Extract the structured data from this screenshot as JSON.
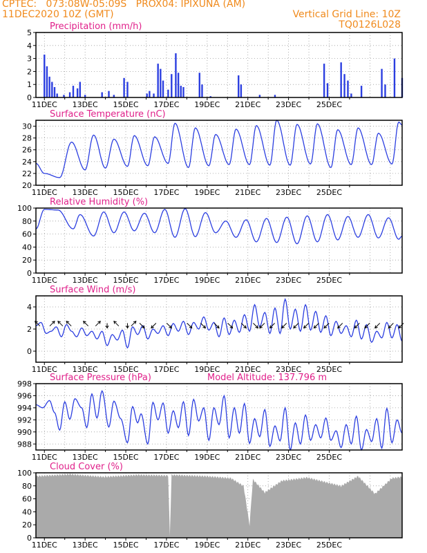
{
  "header": {
    "line1": "CPTEC:   073:08W-05:09S   PROX04: IPIXUNA (AM)",
    "line2": "11DEC2020 10Z (GMT)",
    "grid_note": "Vertical Grid Line: 10Z",
    "code": "TQ0126L028"
  },
  "x_labels": [
    "11DEC",
    "13DEC",
    "15DEC",
    "17DEC",
    "19DEC",
    "21DEC",
    "23DEC",
    "25DEC"
  ],
  "colors": {
    "header": "#f08a1c",
    "title": "#e0208a",
    "series": "#2b3ee0",
    "cloud": "#aaaaaa",
    "grid": "#999999",
    "wind_arrow": "#000000"
  },
  "chart_data": [
    {
      "type": "bar",
      "title": "Precipitation (mm/h)",
      "ylim": [
        0,
        5
      ],
      "yticks": [
        "0",
        "1",
        "2",
        "3",
        "4",
        "5"
      ],
      "x": "hours since 11DEC 00Z",
      "bars": [
        [
          10,
          3.3
        ],
        [
          13,
          2.4
        ],
        [
          16,
          1.6
        ],
        [
          19,
          1.2
        ],
        [
          22,
          0.8
        ],
        [
          25,
          0.3
        ],
        [
          33,
          0.2
        ],
        [
          40,
          0.4
        ],
        [
          44,
          0.9
        ],
        [
          49,
          0.7
        ],
        [
          52,
          1.2
        ],
        [
          58,
          0.2
        ],
        [
          78,
          0.4
        ],
        [
          86,
          0.5
        ],
        [
          92,
          0.2
        ],
        [
          104,
          1.5
        ],
        [
          108,
          1.2
        ],
        [
          131,
          0.3
        ],
        [
          134,
          0.5
        ],
        [
          139,
          0.3
        ],
        [
          144,
          2.6
        ],
        [
          147,
          2.2
        ],
        [
          150,
          1.3
        ],
        [
          156,
          0.6
        ],
        [
          160,
          1.8
        ],
        [
          165,
          3.4
        ],
        [
          168,
          1.9
        ],
        [
          171,
          0.9
        ],
        [
          174,
          0.8
        ],
        [
          193,
          1.9
        ],
        [
          196,
          1.0
        ],
        [
          206,
          0.1
        ],
        [
          239,
          1.7
        ],
        [
          242,
          1.0
        ],
        [
          264,
          0.2
        ],
        [
          282,
          0.2
        ],
        [
          340,
          2.6
        ],
        [
          344,
          1.1
        ],
        [
          360,
          2.7
        ],
        [
          364,
          1.8
        ],
        [
          368,
          1.3
        ],
        [
          372,
          0.3
        ],
        [
          384,
          0.9
        ],
        [
          408,
          2.2
        ],
        [
          412,
          1.0
        ],
        [
          423,
          3.0
        ],
        [
          432,
          1.5
        ]
      ]
    },
    {
      "type": "line",
      "title": "Surface Temperature (nC)",
      "ylim": [
        20,
        31
      ],
      "yticks": [
        "20",
        "22",
        "24",
        "26",
        "28",
        "30"
      ],
      "x": "hours since 11DEC 00Z",
      "minima": [
        [
          10,
          22.0
        ],
        [
          28,
          21.3
        ],
        [
          58,
          22.6
        ],
        [
          82,
          22.9
        ],
        [
          108,
          23.2
        ],
        [
          132,
          23.3
        ],
        [
          156,
          23.7
        ],
        [
          180,
          23.0
        ],
        [
          204,
          23.3
        ],
        [
          228,
          23.5
        ],
        [
          252,
          23.5
        ],
        [
          276,
          23.4
        ],
        [
          300,
          23.4
        ],
        [
          324,
          23.6
        ],
        [
          348,
          23.0
        ],
        [
          372,
          23.5
        ],
        [
          396,
          23.5
        ],
        [
          420,
          23.6
        ]
      ],
      "maxima": [
        [
          0,
          23.7
        ],
        [
          42,
          27.3
        ],
        [
          68,
          28.5
        ],
        [
          92,
          27.8
        ],
        [
          116,
          28.4
        ],
        [
          140,
          28.2
        ],
        [
          164,
          30.5
        ],
        [
          188,
          29.7
        ],
        [
          212,
          28.6
        ],
        [
          236,
          29.5
        ],
        [
          260,
          30.1
        ],
        [
          284,
          31.0
        ],
        [
          308,
          30.3
        ],
        [
          332,
          30.4
        ],
        [
          356,
          29.4
        ],
        [
          380,
          29.7
        ],
        [
          404,
          28.8
        ],
        [
          428,
          30.7
        ],
        [
          432,
          30.2
        ]
      ]
    },
    {
      "type": "line",
      "title": "Relative Humidity (%)",
      "ylim": [
        0,
        100
      ],
      "yticks": [
        "0",
        "20",
        "40",
        "60",
        "80",
        "100"
      ],
      "x": "hours since 11DEC 00Z",
      "minima": [
        [
          0,
          68
        ],
        [
          44,
          68
        ],
        [
          68,
          57
        ],
        [
          92,
          62
        ],
        [
          116,
          65
        ],
        [
          140,
          62
        ],
        [
          164,
          55
        ],
        [
          188,
          56
        ],
        [
          212,
          62
        ],
        [
          236,
          55
        ],
        [
          260,
          48
        ],
        [
          284,
          47
        ],
        [
          308,
          45
        ],
        [
          332,
          48
        ],
        [
          356,
          51
        ],
        [
          380,
          55
        ],
        [
          404,
          54
        ],
        [
          428,
          52
        ],
        [
          432,
          57
        ]
      ],
      "maxima": [
        [
          10,
          98
        ],
        [
          26,
          97
        ],
        [
          52,
          90
        ],
        [
          80,
          94
        ],
        [
          104,
          94
        ],
        [
          128,
          92
        ],
        [
          152,
          98
        ],
        [
          176,
          99
        ],
        [
          200,
          93
        ],
        [
          224,
          80
        ],
        [
          248,
          82
        ],
        [
          272,
          84
        ],
        [
          296,
          86
        ],
        [
          320,
          88
        ],
        [
          344,
          90
        ],
        [
          368,
          87
        ],
        [
          392,
          90
        ],
        [
          416,
          85
        ]
      ]
    },
    {
      "type": "line",
      "title": "Surface Wind (m/s)",
      "ylim": [
        -1,
        5
      ],
      "yticks": [
        "0",
        "2",
        "4"
      ],
      "x": "hours since 11DEC 00Z",
      "keys": [
        [
          0,
          2.3
        ],
        [
          6,
          2.6
        ],
        [
          12,
          1.6
        ],
        [
          18,
          1.8
        ],
        [
          24,
          2.2
        ],
        [
          30,
          1.3
        ],
        [
          36,
          2.4
        ],
        [
          42,
          1.8
        ],
        [
          48,
          1.3
        ],
        [
          54,
          2.1
        ],
        [
          60,
          1.4
        ],
        [
          66,
          1.8
        ],
        [
          72,
          1.1
        ],
        [
          78,
          1.8
        ],
        [
          84,
          0.5
        ],
        [
          90,
          1.5
        ],
        [
          96,
          1.0
        ],
        [
          102,
          1.9
        ],
        [
          108,
          0.3
        ],
        [
          114,
          2.2
        ],
        [
          120,
          1.5
        ],
        [
          126,
          2.3
        ],
        [
          132,
          1.1
        ],
        [
          138,
          2.0
        ],
        [
          144,
          1.6
        ],
        [
          150,
          2.3
        ],
        [
          156,
          1.4
        ],
        [
          162,
          2.5
        ],
        [
          168,
          1.8
        ],
        [
          174,
          2.7
        ],
        [
          180,
          1.5
        ],
        [
          186,
          2.6
        ],
        [
          192,
          2.0
        ],
        [
          198,
          3.1
        ],
        [
          204,
          1.9
        ],
        [
          210,
          2.6
        ],
        [
          216,
          1.3
        ],
        [
          222,
          3.0
        ],
        [
          228,
          1.5
        ],
        [
          234,
          2.8
        ],
        [
          240,
          1.7
        ],
        [
          246,
          3.3
        ],
        [
          252,
          1.8
        ],
        [
          258,
          4.2
        ],
        [
          264,
          2.2
        ],
        [
          270,
          3.5
        ],
        [
          276,
          1.6
        ],
        [
          282,
          3.9
        ],
        [
          288,
          1.6
        ],
        [
          294,
          4.7
        ],
        [
          300,
          2.0
        ],
        [
          306,
          3.8
        ],
        [
          312,
          1.8
        ],
        [
          318,
          4.2
        ],
        [
          324,
          1.9
        ],
        [
          330,
          3.6
        ],
        [
          336,
          1.7
        ],
        [
          342,
          3.2
        ],
        [
          348,
          1.4
        ],
        [
          354,
          2.7
        ],
        [
          360,
          1.6
        ],
        [
          366,
          2.3
        ],
        [
          372,
          1.3
        ],
        [
          378,
          2.8
        ],
        [
          384,
          1.1
        ],
        [
          390,
          2.4
        ],
        [
          396,
          0.8
        ],
        [
          402,
          1.8
        ],
        [
          408,
          1.2
        ],
        [
          414,
          2.6
        ],
        [
          420,
          1.2
        ],
        [
          426,
          2.4
        ],
        [
          432,
          0.9
        ]
      ],
      "arrows": [
        [
          3,
          2.4,
          -1,
          -1
        ],
        [
          18,
          2.4,
          1,
          -1
        ],
        [
          30,
          2.4,
          -1,
          -1
        ],
        [
          40,
          2.4,
          -1,
          -1
        ],
        [
          60,
          2.4,
          -1,
          -1
        ],
        [
          72,
          2.4,
          1,
          -1
        ],
        [
          84,
          2.4,
          0,
          1
        ],
        [
          96,
          2.4,
          -1,
          -1
        ],
        [
          108,
          2.4,
          0,
          1
        ],
        [
          114,
          2.4,
          1,
          -1
        ],
        [
          124,
          2.4,
          1,
          1
        ],
        [
          140,
          2.4,
          -1,
          1
        ],
        [
          156,
          2.4,
          1,
          1
        ],
        [
          180,
          2.4,
          1,
          1
        ],
        [
          196,
          2.4,
          1,
          1
        ],
        [
          212,
          2.4,
          1,
          1
        ],
        [
          228,
          2.4,
          1,
          1
        ],
        [
          244,
          2.4,
          1,
          1
        ],
        [
          258,
          2.4,
          1,
          1
        ],
        [
          268,
          2.4,
          -1,
          1
        ],
        [
          280,
          2.4,
          -1,
          1
        ],
        [
          294,
          2.4,
          -1,
          1
        ],
        [
          308,
          2.4,
          -1,
          1
        ],
        [
          320,
          2.4,
          -1,
          1
        ],
        [
          332,
          2.4,
          -1,
          1
        ],
        [
          344,
          2.4,
          -1,
          1
        ],
        [
          360,
          2.4,
          -1,
          1
        ],
        [
          380,
          2.4,
          -1,
          1
        ],
        [
          392,
          2.4,
          -1,
          1
        ],
        [
          404,
          2.4,
          -1,
          1
        ],
        [
          420,
          2.4,
          -1,
          1
        ],
        [
          432,
          2.4,
          -1,
          1
        ]
      ]
    },
    {
      "type": "line",
      "title": "Surface Pressure (hPa)",
      "subtitle": "Model Altitude: 137.796 m",
      "ylim": [
        987,
        998
      ],
      "yticks": [
        "988",
        "990",
        "992",
        "994",
        "996",
        "998"
      ],
      "x": "hours since 11DEC 00Z",
      "keys": [
        [
          0,
          994.5
        ],
        [
          8,
          994.0
        ],
        [
          16,
          995.2
        ],
        [
          22,
          993.2
        ],
        [
          28,
          990.3
        ],
        [
          34,
          995.0
        ],
        [
          40,
          992.1
        ],
        [
          46,
          995.5
        ],
        [
          54,
          994.0
        ],
        [
          60,
          990.7
        ],
        [
          66,
          996.3
        ],
        [
          72,
          992.3
        ],
        [
          78,
          996.8
        ],
        [
          86,
          990.8
        ],
        [
          92,
          995.1
        ],
        [
          100,
          992.2
        ],
        [
          108,
          988.2
        ],
        [
          114,
          994.2
        ],
        [
          120,
          991.5
        ],
        [
          124,
          993.0
        ],
        [
          132,
          988.0
        ],
        [
          138,
          994.9
        ],
        [
          144,
          992.0
        ],
        [
          150,
          994.8
        ],
        [
          156,
          989.8
        ],
        [
          162,
          993.5
        ],
        [
          168,
          990.7
        ],
        [
          174,
          995.0
        ],
        [
          180,
          989.4
        ],
        [
          186,
          995.4
        ],
        [
          192,
          991.8
        ],
        [
          198,
          994.0
        ],
        [
          204,
          988.6
        ],
        [
          210,
          994.0
        ],
        [
          216,
          991.2
        ],
        [
          222,
          996.0
        ],
        [
          228,
          989.0
        ],
        [
          234,
          994.0
        ],
        [
          240,
          989.8
        ],
        [
          246,
          994.7
        ],
        [
          252,
          988.1
        ],
        [
          258,
          992.2
        ],
        [
          264,
          989.2
        ],
        [
          270,
          993.7
        ],
        [
          276,
          987.6
        ],
        [
          282,
          991.0
        ],
        [
          288,
          988.5
        ],
        [
          294,
          994.0
        ],
        [
          300,
          987.0
        ],
        [
          306,
          991.5
        ],
        [
          312,
          988.0
        ],
        [
          318,
          992.8
        ],
        [
          324,
          988.6
        ],
        [
          330,
          991.2
        ],
        [
          336,
          989.0
        ],
        [
          342,
          992.3
        ],
        [
          348,
          988.6
        ],
        [
          354,
          990.2
        ],
        [
          360,
          987.4
        ],
        [
          366,
          991.2
        ],
        [
          372,
          988.0
        ],
        [
          378,
          992.6
        ],
        [
          384,
          987.0
        ],
        [
          390,
          990.4
        ],
        [
          396,
          988.4
        ],
        [
          402,
          992.2
        ],
        [
          408,
          987.3
        ],
        [
          414,
          993.9
        ],
        [
          420,
          988.2
        ],
        [
          426,
          992.0
        ],
        [
          432,
          989.8
        ]
      ]
    },
    {
      "type": "area",
      "title": "Cloud Cover (%)",
      "ylim": [
        0,
        100
      ],
      "yticks": [
        "0",
        "20",
        "40",
        "60",
        "80",
        "100"
      ],
      "x": "hours since 11DEC 00Z",
      "keys": [
        [
          0,
          95
        ],
        [
          40,
          98
        ],
        [
          80,
          94
        ],
        [
          120,
          97
        ],
        [
          156,
          96
        ],
        [
          158,
          3
        ],
        [
          160,
          97
        ],
        [
          200,
          95
        ],
        [
          230,
          92
        ],
        [
          245,
          80
        ],
        [
          252,
          20
        ],
        [
          256,
          90
        ],
        [
          270,
          70
        ],
        [
          290,
          88
        ],
        [
          320,
          93
        ],
        [
          360,
          80
        ],
        [
          380,
          95
        ],
        [
          400,
          68
        ],
        [
          420,
          92
        ],
        [
          432,
          94
        ]
      ]
    }
  ]
}
